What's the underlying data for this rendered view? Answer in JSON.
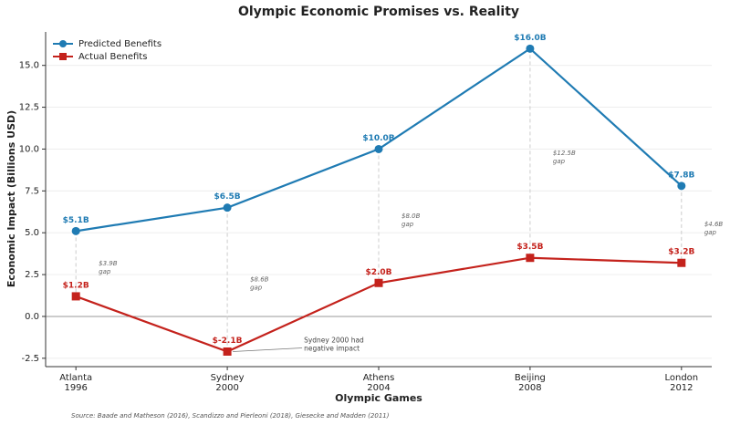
{
  "chart_data": {
    "type": "line",
    "title": "Olympic Economic Promises vs. Reality",
    "xlabel": "Olympic Games",
    "ylabel": "Economic Impact (Billions USD)",
    "categories": [
      [
        "Atlanta",
        "1996"
      ],
      [
        "Sydney",
        "2000"
      ],
      [
        "Athens",
        "2004"
      ],
      [
        "Beijing",
        "2008"
      ],
      [
        "London",
        "2012"
      ]
    ],
    "series": [
      {
        "name": "Predicted Benefits",
        "color": "#1f7bb3",
        "marker": "circle",
        "values": [
          5.1,
          6.5,
          10.0,
          16.0,
          7.8
        ],
        "value_labels": [
          "$5.1B",
          "$6.5B",
          "$10.0B",
          "$16.0B",
          "$7.8B"
        ]
      },
      {
        "name": "Actual Benefits",
        "color": "#c4221c",
        "marker": "square",
        "values": [
          1.2,
          -2.1,
          2.0,
          3.5,
          3.2
        ],
        "value_labels": [
          "$1.2B",
          "$-2.1B",
          "$2.0B",
          "$3.5B",
          "$3.2B"
        ]
      }
    ],
    "gap_labels": [
      [
        "$3.9B",
        "gap"
      ],
      [
        "$8.6B",
        "gap"
      ],
      [
        "$8.0B",
        "gap"
      ],
      [
        "$12.5B",
        "gap"
      ],
      [
        "$4.6B",
        "gap"
      ]
    ],
    "annotation": {
      "text": [
        "Sydney 2000 had",
        "negative impact"
      ],
      "category": 1
    },
    "source": "Source: Baade and Matheson (2016), Scandizzo and Pierleoni (2018), Giesecke and Madden (2011)",
    "ylim": [
      -3.0,
      17.0
    ],
    "yticks": [
      -2.5,
      {
        "value": 0,
        "label": "0.0"
      },
      2.5,
      {
        "value": 5,
        "label": "5.0"
      },
      7.5,
      {
        "value": 10,
        "label": "10.0"
      },
      12.5,
      {
        "value": 15,
        "label": "15.0"
      }
    ],
    "grid": true,
    "legend": "upper left"
  }
}
